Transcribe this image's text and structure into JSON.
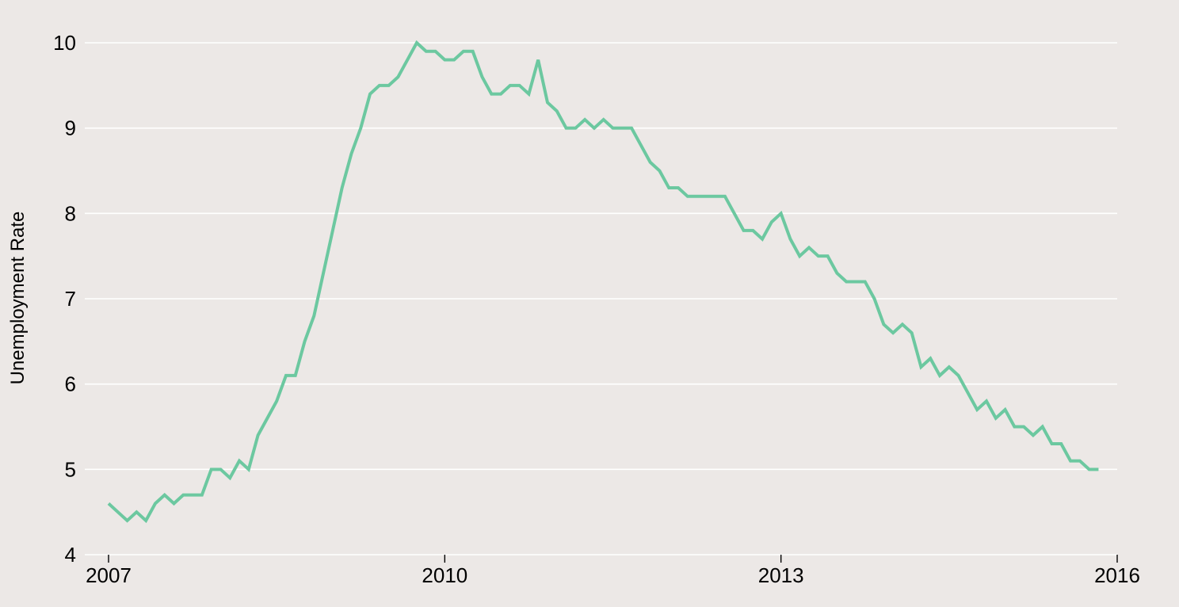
{
  "chart_data": {
    "type": "line",
    "ylabel": "Unemployment Rate",
    "xlabel": "",
    "title": "",
    "ylim": [
      4,
      10
    ],
    "xlim": [
      "2007-01",
      "2016-01"
    ],
    "x_ticks": [
      "2007",
      "2010",
      "2013",
      "2016"
    ],
    "y_ticks": [
      4,
      5,
      6,
      7,
      8,
      9,
      10
    ],
    "grid": true,
    "colors": {
      "line": "#6cc8a0",
      "background": "#ece8e6",
      "grid": "#ffffff"
    },
    "series": [
      {
        "x_start": "2007-01",
        "x_step": "1 month",
        "values": [
          4.6,
          4.5,
          4.4,
          4.5,
          4.4,
          4.6,
          4.7,
          4.6,
          4.7,
          4.7,
          4.7,
          5.0,
          5.0,
          4.9,
          5.1,
          5.0,
          5.4,
          5.6,
          5.8,
          6.1,
          6.1,
          6.5,
          6.8,
          7.3,
          7.8,
          8.3,
          8.7,
          9.0,
          9.4,
          9.5,
          9.5,
          9.6,
          9.8,
          10.0,
          9.9,
          9.9,
          9.8,
          9.8,
          9.9,
          9.9,
          9.6,
          9.4,
          9.4,
          9.5,
          9.5,
          9.4,
          9.8,
          9.3,
          9.2,
          9.0,
          9.0,
          9.1,
          9.0,
          9.1,
          9.0,
          9.0,
          9.0,
          8.8,
          8.6,
          8.5,
          8.3,
          8.3,
          8.2,
          8.2,
          8.2,
          8.2,
          8.2,
          8.0,
          7.8,
          7.8,
          7.7,
          7.9,
          8.0,
          7.7,
          7.5,
          7.6,
          7.5,
          7.5,
          7.3,
          7.2,
          7.2,
          7.2,
          7.0,
          6.7,
          6.6,
          6.7,
          6.6,
          6.2,
          6.3,
          6.1,
          6.2,
          6.1,
          5.9,
          5.7,
          5.8,
          5.6,
          5.7,
          5.5,
          5.5,
          5.4,
          5.5,
          5.3,
          5.3,
          5.1,
          5.1,
          5.0,
          5.0
        ]
      }
    ]
  }
}
